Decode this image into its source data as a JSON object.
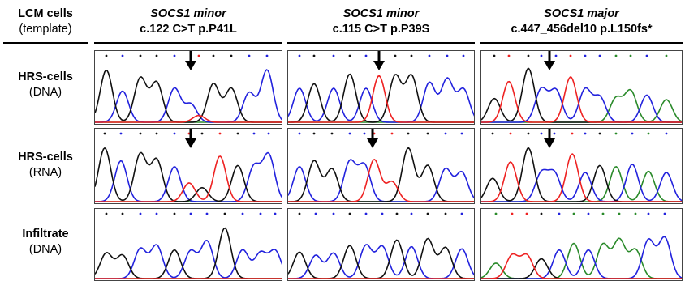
{
  "corner": {
    "line1": "LCM cells",
    "line2": "(template)"
  },
  "columns": [
    {
      "gene": "SOCS1 minor",
      "mutation": "c.122 C>T p.P41L"
    },
    {
      "gene": "SOCS1 minor",
      "mutation": "c.115 C>T p.P39S"
    },
    {
      "gene": "SOCS1 major",
      "mutation": "c.447_456del10 p.L150fs*"
    }
  ],
  "rows": [
    {
      "line1": "HRS-cells",
      "line2": "(DNA)"
    },
    {
      "line1": "HRS-cells",
      "line2": "(RNA)"
    },
    {
      "line1": "Infiltrate",
      "line2": "(DNA)"
    }
  ],
  "position_numbers": [
    "220",
    "220",
    "220",
    "170",
    "170",
    "480",
    "490",
    "180",
    "220",
    "490"
  ],
  "colors": {
    "A": "#2a8a2a",
    "C": "#2222dd",
    "G": "#111111",
    "T": "#ee2222",
    "arrow": "#000000"
  },
  "arrows": {
    "row0": [
      true,
      true,
      true
    ],
    "row1": [
      true,
      true,
      true
    ],
    "row2": [
      false,
      false,
      false
    ]
  }
}
